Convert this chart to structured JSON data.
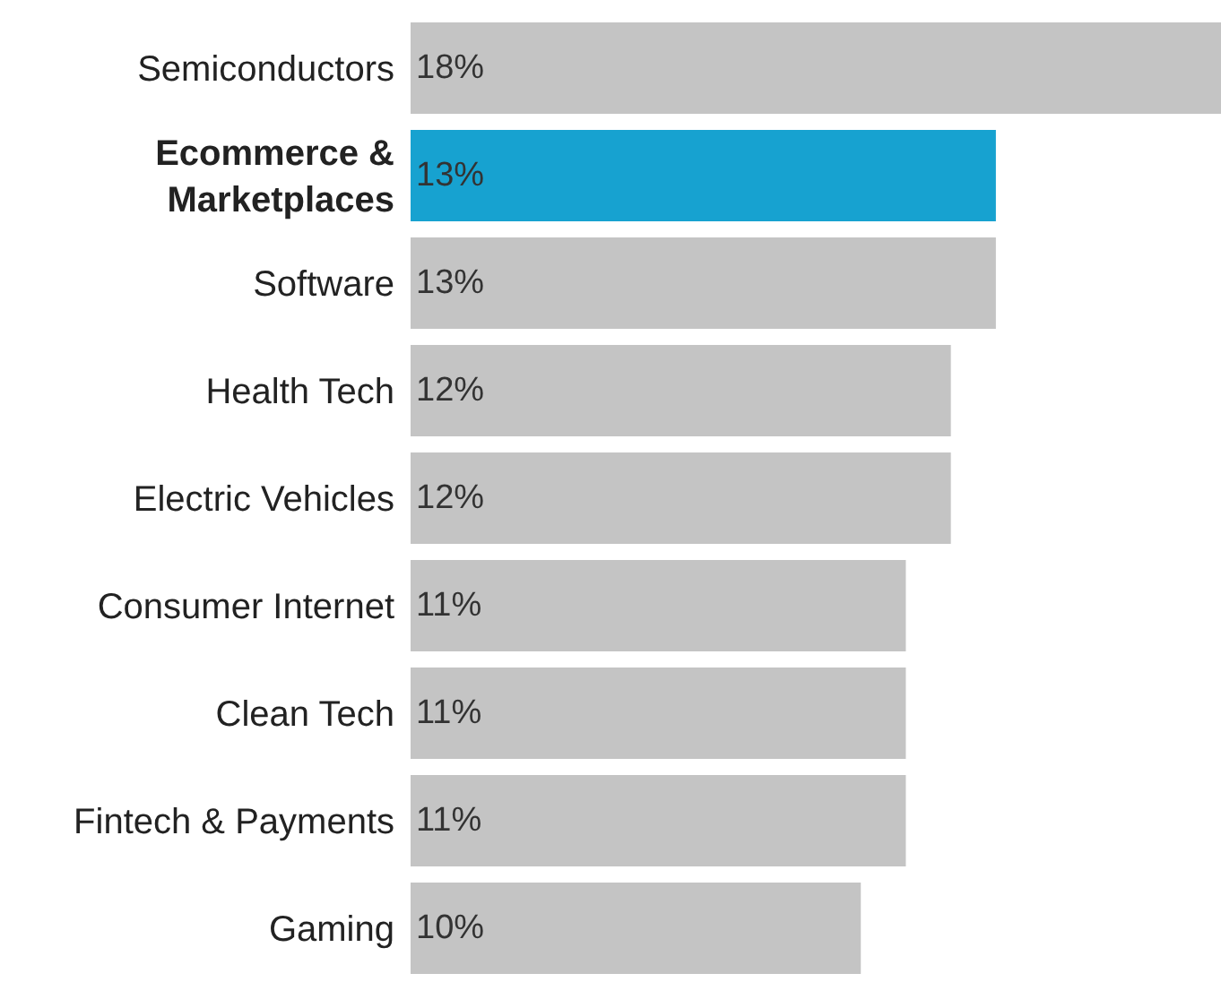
{
  "chart_data": {
    "type": "bar",
    "orientation": "horizontal",
    "categories": [
      "Semiconductors",
      "Ecommerce &\nMarketplaces",
      "Software",
      "Health Tech",
      "Electric Vehicles",
      "Consumer Internet",
      "Clean Tech",
      "Fintech & Payments",
      "Gaming"
    ],
    "values": [
      18,
      13,
      13,
      12,
      12,
      11,
      11,
      11,
      10
    ],
    "value_labels": [
      "18%",
      "13%",
      "13%",
      "12%",
      "12%",
      "11%",
      "11%",
      "11%",
      "10%"
    ],
    "colors": [
      "#c4c4c4",
      "#17a2d0",
      "#c4c4c4",
      "#c4c4c4",
      "#c4c4c4",
      "#c4c4c4",
      "#c4c4c4",
      "#c4c4c4",
      "#c4c4c4"
    ],
    "legend": false
  }
}
